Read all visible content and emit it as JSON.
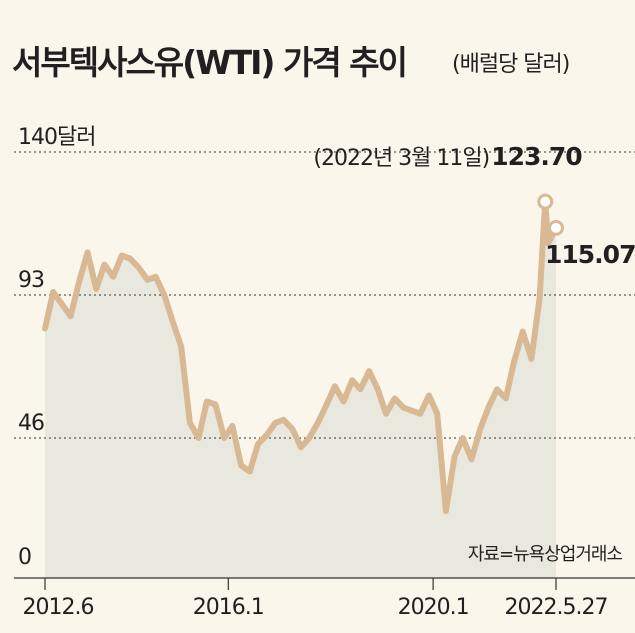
{
  "header": {
    "title": "서부텍사스유(WTI) 가격 추이",
    "subtitle": "(배럴당 달러)"
  },
  "source": "자료=뉴욕상업거래소",
  "colors": {
    "line": "#d9b994",
    "area": "#e9e8df",
    "background": "#fbf6ec",
    "grid": "#333333",
    "text": "#231f20"
  },
  "chart_data": {
    "type": "area",
    "title": "서부텍사스유(WTI) 가격 추이",
    "subtitle": "(배럴당 달러)",
    "x_tick_labels": [
      "2012.6",
      "2016.1",
      "2020.1",
      "2022.5.27"
    ],
    "x_tick_values": [
      2012.42,
      2016.0,
      2020.0,
      2022.4
    ],
    "y_ticks": [
      {
        "value": 0,
        "label": "0"
      },
      {
        "value": 46,
        "label": "46"
      },
      {
        "value": 93,
        "label": "93"
      },
      {
        "value": 140,
        "label": "140달러"
      }
    ],
    "ylim": [
      0,
      140
    ],
    "grid": "horizontal dashed",
    "series": [
      {
        "x": [
          2012.42,
          2012.58,
          2012.75,
          2012.92,
          2013.08,
          2013.25,
          2013.42,
          2013.58,
          2013.75,
          2013.92,
          2014.08,
          2014.25,
          2014.42,
          2014.58,
          2014.75,
          2014.92,
          2015.08,
          2015.25,
          2015.42,
          2015.58,
          2015.75,
          2015.92,
          2016.08,
          2016.25,
          2016.42,
          2016.58,
          2016.75,
          2016.92,
          2017.08,
          2017.25,
          2017.42,
          2017.58,
          2017.75,
          2017.92,
          2018.08,
          2018.25,
          2018.42,
          2018.58,
          2018.75,
          2018.92,
          2019.08,
          2019.25,
          2019.42,
          2019.58,
          2019.75,
          2019.92,
          2020.08,
          2020.25,
          2020.42,
          2020.58,
          2020.75,
          2020.92,
          2021.08,
          2021.25,
          2021.42,
          2021.58,
          2021.75,
          2021.92,
          2022.08,
          2022.19,
          2022.25,
          2022.4
        ],
        "values": [
          82,
          94,
          90,
          86,
          97,
          107,
          95,
          103,
          99,
          106,
          105,
          102,
          98,
          99,
          93,
          84,
          76,
          51,
          46,
          58,
          57,
          46,
          50,
          37,
          35,
          44,
          47,
          51,
          52,
          49,
          43,
          46,
          51,
          57,
          63,
          58,
          65,
          62,
          68,
          62,
          54,
          59,
          56,
          55,
          54,
          60,
          54,
          22,
          40,
          46,
          39,
          49,
          56,
          62,
          59,
          71,
          81,
          72,
          92,
          123.7,
          110,
          115.07
        ]
      }
    ],
    "annotations": [
      {
        "label": "(2022년 3월 11일)",
        "value": "123.70",
        "x": 2022.19,
        "y": 123.7
      },
      {
        "value": "115.07",
        "x": 2022.4,
        "y": 115.07
      }
    ]
  }
}
